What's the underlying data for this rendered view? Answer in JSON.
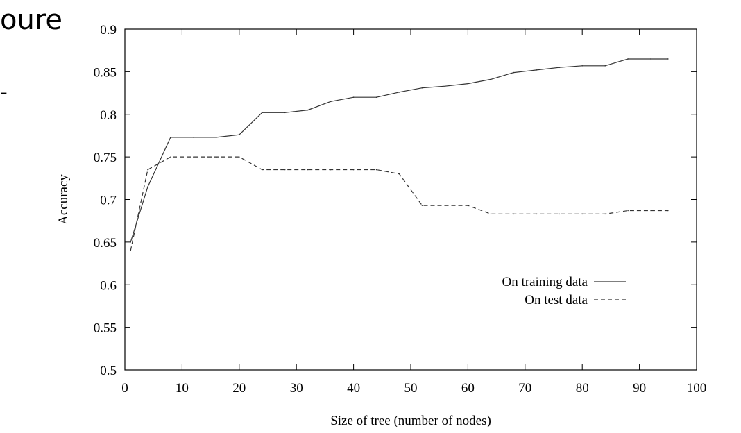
{
  "slide": {
    "title_fragment": "oure",
    "bullet_fragment": "-"
  },
  "chart_data": {
    "type": "line",
    "title": "",
    "xlabel": "Size of tree (number of nodes)",
    "ylabel": "Accuracy",
    "xlim": [
      0,
      100
    ],
    "ylim": [
      0.5,
      0.9
    ],
    "xticks": [
      0,
      10,
      20,
      30,
      40,
      50,
      60,
      70,
      80,
      90,
      100
    ],
    "xtick_labels": [
      "0",
      "10",
      "20",
      "30",
      "40",
      "50",
      "60",
      "70",
      "80",
      "90",
      "100"
    ],
    "yticks": [
      0.5,
      0.55,
      0.6,
      0.65,
      0.7,
      0.75,
      0.8,
      0.85,
      0.9
    ],
    "ytick_labels": [
      "0.5",
      "0.55",
      "0.6",
      "0.65",
      "0.7",
      "0.75",
      "0.8",
      "0.85",
      "0.9"
    ],
    "grid": false,
    "legend_position": "right",
    "series": [
      {
        "name": "On training data",
        "style": "solid",
        "x": [
          1,
          4,
          8,
          12,
          16,
          20,
          24,
          28,
          32,
          36,
          40,
          44,
          48,
          52,
          56,
          60,
          64,
          68,
          72,
          76,
          80,
          84,
          88,
          92,
          95
        ],
        "y": [
          0.65,
          0.715,
          0.773,
          0.773,
          0.773,
          0.776,
          0.802,
          0.802,
          0.805,
          0.815,
          0.82,
          0.82,
          0.826,
          0.831,
          0.833,
          0.836,
          0.841,
          0.849,
          0.852,
          0.855,
          0.857,
          0.857,
          0.865,
          0.865,
          0.865
        ]
      },
      {
        "name": "On test data",
        "style": "dashed",
        "x": [
          1,
          4,
          8,
          12,
          16,
          20,
          24,
          28,
          32,
          36,
          40,
          44,
          48,
          52,
          56,
          60,
          64,
          68,
          72,
          76,
          80,
          84,
          88,
          92,
          95
        ],
        "y": [
          0.64,
          0.735,
          0.75,
          0.75,
          0.75,
          0.75,
          0.735,
          0.735,
          0.735,
          0.735,
          0.735,
          0.735,
          0.73,
          0.693,
          0.693,
          0.693,
          0.683,
          0.683,
          0.683,
          0.683,
          0.683,
          0.683,
          0.687,
          0.687,
          0.687
        ]
      }
    ]
  }
}
